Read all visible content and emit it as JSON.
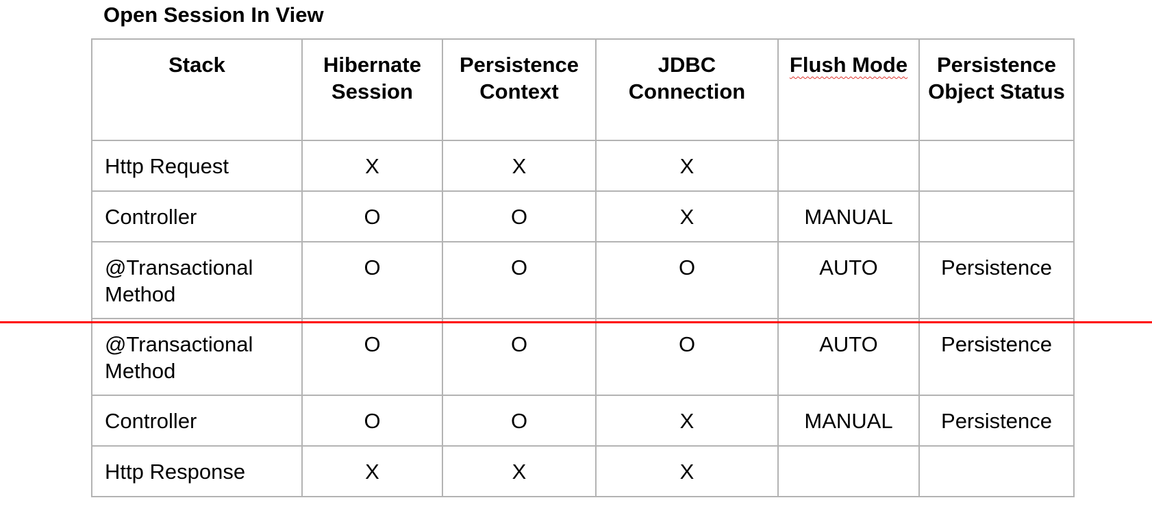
{
  "title": "Open Session In View",
  "table": {
    "headers": [
      "Stack",
      "Hibernate Session",
      "Persistence Context",
      "JDBC Connection",
      "Flush Mode",
      "Persistence Object Status"
    ],
    "rows": [
      [
        "Http Request",
        "X",
        "X",
        "X",
        "",
        ""
      ],
      [
        "Controller",
        "O",
        "O",
        "X",
        "MANUAL",
        ""
      ],
      [
        "@Transactional Method",
        "O",
        "O",
        "O",
        "AUTO",
        "Persistence"
      ],
      [
        "@Transactional Method",
        "O",
        "O",
        "O",
        "AUTO",
        "Persistence"
      ],
      [
        "Controller",
        "O",
        "O",
        "X",
        "MANUAL",
        "Persistence"
      ],
      [
        "Http Response",
        "X",
        "X",
        "X",
        "",
        ""
      ]
    ]
  },
  "colors": {
    "divider": "#ff0000",
    "grid_border": "#b3b3b3",
    "spellcheck_underline": "#e0342c"
  }
}
